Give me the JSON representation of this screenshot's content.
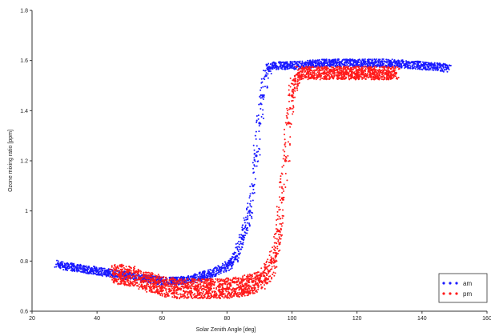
{
  "chart_data": {
    "type": "scatter",
    "title": "",
    "xlabel": "Solar Zenith Angle [deg]",
    "ylabel": "Ozone mixing ratio [ppm]",
    "xlim": [
      20,
      160
    ],
    "ylim": [
      0.6,
      1.8
    ],
    "xticks": [
      "20",
      "40",
      "60",
      "80",
      "100",
      "120",
      "140",
      "160"
    ],
    "yticks": [
      "0.6",
      "0.8",
      "1",
      "1.2",
      "1.4",
      "1.6",
      "1.8"
    ],
    "grid": false,
    "legend": {
      "position": "bottom-right"
    },
    "series": [
      {
        "name": "am",
        "color": "#1a1aff",
        "x": [
          28,
          30,
          35,
          40,
          45,
          50,
          55,
          60,
          65,
          70,
          75,
          80,
          83,
          85,
          87,
          88,
          89,
          90,
          91,
          92,
          93,
          94,
          95,
          100,
          110,
          120,
          130,
          140,
          148
        ],
        "y": [
          0.79,
          0.78,
          0.77,
          0.76,
          0.75,
          0.74,
          0.73,
          0.72,
          0.72,
          0.73,
          0.75,
          0.78,
          0.82,
          0.9,
          1.0,
          1.1,
          1.22,
          1.35,
          1.46,
          1.54,
          1.57,
          1.58,
          1.58,
          1.58,
          1.59,
          1.59,
          1.59,
          1.58,
          1.57
        ]
      },
      {
        "name": "pm",
        "color": "#ff1a1a",
        "x": [
          45,
          50,
          55,
          60,
          65,
          70,
          75,
          80,
          85,
          90,
          93,
          95,
          96,
          97,
          98,
          99,
          100,
          101,
          102,
          105,
          110,
          115,
          120,
          125,
          132
        ],
        "y": [
          0.75,
          0.74,
          0.72,
          0.7,
          0.69,
          0.69,
          0.69,
          0.69,
          0.7,
          0.72,
          0.76,
          0.82,
          0.92,
          1.05,
          1.2,
          1.35,
          1.46,
          1.52,
          1.55,
          1.55,
          1.55,
          1.55,
          1.55,
          1.55,
          1.55
        ]
      }
    ]
  }
}
